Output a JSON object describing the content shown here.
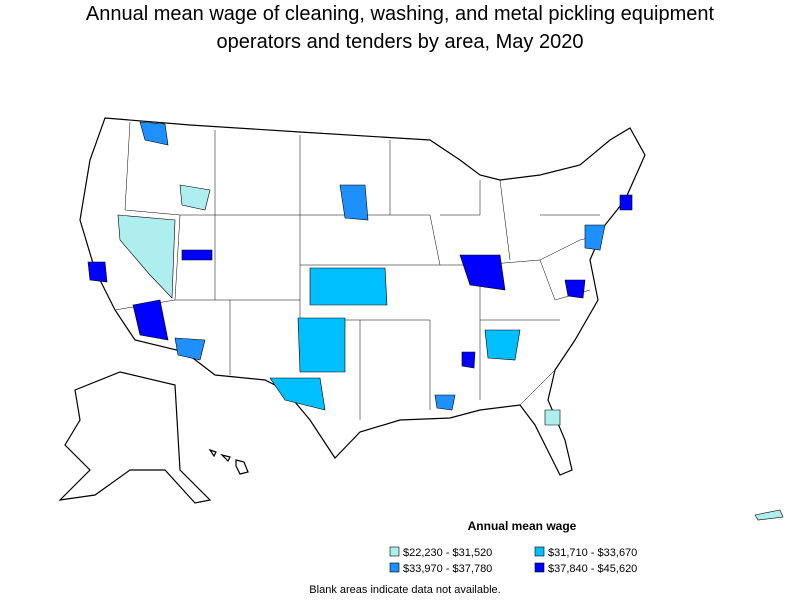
{
  "title": [
    "Annual mean wage of cleaning, washing, and metal pickling equipment",
    "operators and tenders by area, May 2020"
  ],
  "legend": {
    "title": "Annual mean wage",
    "items": [
      {
        "label": "$22,230 - $31,520",
        "color": "#afeeee"
      },
      {
        "label": "$31,710 - $33,670",
        "color": "#00bfff"
      },
      {
        "label": "$33,970 - $37,780",
        "color": "#1e90ff"
      },
      {
        "label": "$37,840 - $45,620",
        "color": "#0000ff"
      }
    ]
  },
  "note": "Blank areas indicate data not available."
}
